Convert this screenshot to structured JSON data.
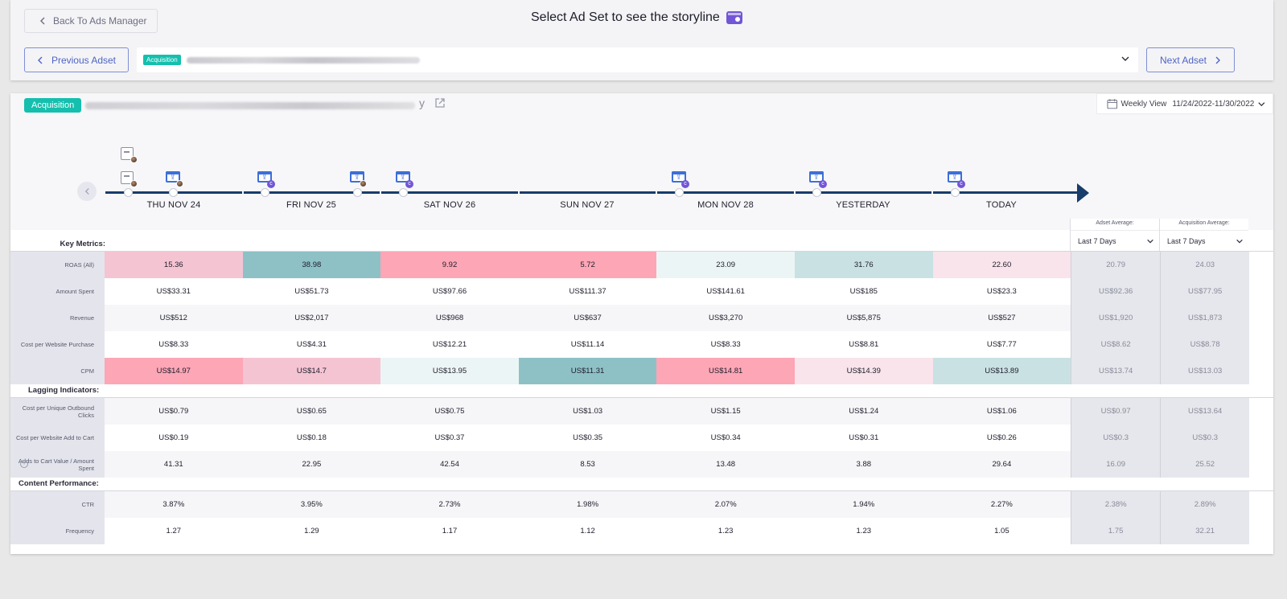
{
  "header": {
    "back_label": "Back To Ads Manager",
    "title": "Select Ad Set to see the storyline",
    "prev_label": "Previous Adset",
    "next_label": "Next Adset",
    "adset_badge": "Acquisition"
  },
  "main": {
    "badge": "Acquisition",
    "title_tail": "y",
    "week_view": {
      "label": "Weekly View",
      "range": "11/24/2022-11/30/2022"
    }
  },
  "days": [
    "THU NOV 24",
    "FRI NOV 25",
    "SAT NOV 26",
    "SUN NOV 27",
    "MON NOV 28",
    "YESTERDAY",
    "TODAY"
  ],
  "averages": {
    "adset": {
      "label": "Adset Average:",
      "period": "Last 7 Days"
    },
    "acquisition": {
      "label": "Acquisition Average:",
      "period": "Last 7 Days"
    }
  },
  "sections": {
    "key_metrics": "Key Metrics:",
    "lagging": "Lagging Indicators:",
    "content": "Content Performance:"
  },
  "rows": {
    "roas": {
      "label": "ROAS (All)",
      "values": [
        "15.36",
        "38.98",
        "9.92",
        "5.72",
        "23.09",
        "31.76",
        "22.60"
      ],
      "adset_avg": "20.79",
      "acq_avg": "24.03"
    },
    "amount_spent": {
      "label": "Amount Spent",
      "values": [
        "US$33.31",
        "US$51.73",
        "US$97.66",
        "US$111.37",
        "US$141.61",
        "US$185",
        "US$23.3"
      ],
      "adset_avg": "US$92.36",
      "acq_avg": "US$77.95"
    },
    "revenue": {
      "label": "Revenue",
      "values": [
        "US$512",
        "US$2,017",
        "US$968",
        "US$637",
        "US$3,270",
        "US$5,875",
        "US$527"
      ],
      "adset_avg": "US$1,920",
      "acq_avg": "US$1,873"
    },
    "cpp": {
      "label": "Cost per Website Purchase",
      "values": [
        "US$8.33",
        "US$4.31",
        "US$12.21",
        "US$11.14",
        "US$8.33",
        "US$8.81",
        "US$7.77"
      ],
      "adset_avg": "US$8.62",
      "acq_avg": "US$8.78"
    },
    "cpm": {
      "label": "CPM",
      "values": [
        "US$14.97",
        "US$14.7",
        "US$13.95",
        "US$11.31",
        "US$14.81",
        "US$14.39",
        "US$13.89"
      ],
      "adset_avg": "US$13.74",
      "acq_avg": "US$13.03"
    },
    "cpuoc": {
      "label": "Cost per Unique Outbound Clicks",
      "values": [
        "US$0.79",
        "US$0.65",
        "US$0.75",
        "US$1.03",
        "US$1.15",
        "US$1.24",
        "US$1.06"
      ],
      "adset_avg": "US$0.97",
      "acq_avg": "US$13.64"
    },
    "cpatc": {
      "label": "Cost per Website Add to Cart",
      "values": [
        "US$0.19",
        "US$0.18",
        "US$0.37",
        "US$0.35",
        "US$0.34",
        "US$0.31",
        "US$0.26"
      ],
      "adset_avg": "US$0.3",
      "acq_avg": "US$0.3"
    },
    "atc_ratio": {
      "label": "Adds to Cart Value / Amount Spent",
      "values": [
        "41.31",
        "22.95",
        "42.54",
        "8.53",
        "13.48",
        "3.88",
        "29.64"
      ],
      "adset_avg": "16.09",
      "acq_avg": "25.52"
    },
    "ctr": {
      "label": "CTR",
      "values": [
        "3.87%",
        "3.95%",
        "2.73%",
        "1.98%",
        "2.07%",
        "1.94%",
        "2.27%"
      ],
      "adset_avg": "2.38%",
      "acq_avg": "2.89%"
    },
    "frequency": {
      "label": "Frequency",
      "values": [
        "1.27",
        "1.29",
        "1.17",
        "1.12",
        "1.23",
        "1.23",
        "1.05"
      ],
      "adset_avg": "1.75",
      "acq_avg": "32.21"
    }
  },
  "colors": {
    "accent": "#15bfae",
    "timeline": "#183c6b",
    "event_purple": "#7256d6",
    "heat_pink": "#f5c4d3",
    "heat_red": "#fda6b6",
    "heat_teal": "#8dc1c6"
  }
}
